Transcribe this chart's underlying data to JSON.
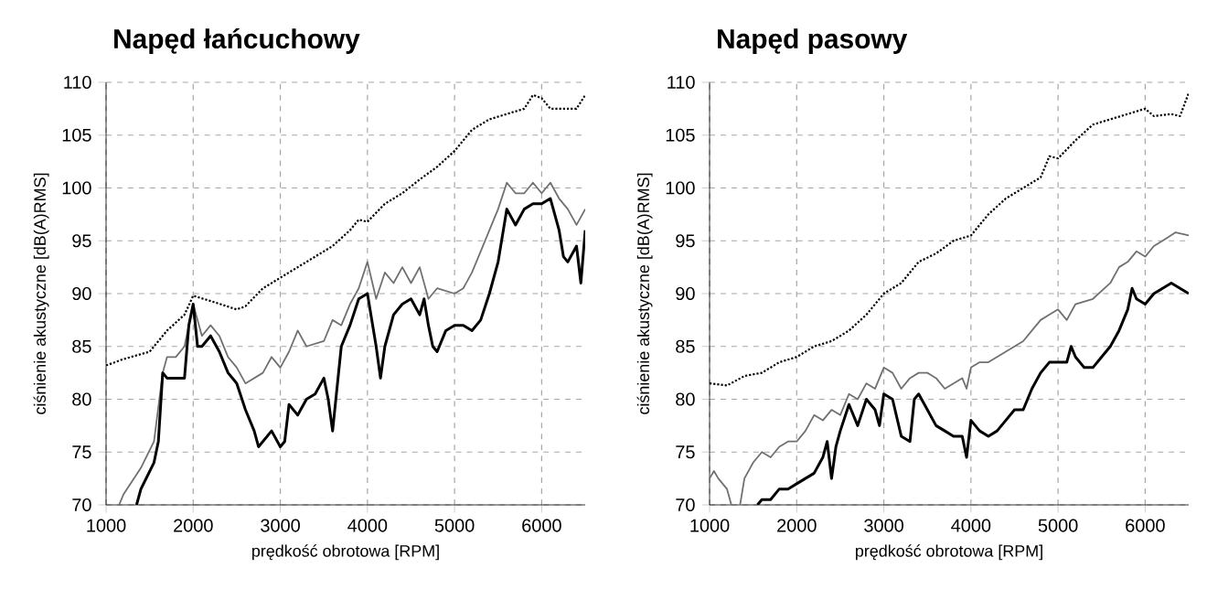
{
  "chart_data": [
    {
      "type": "line",
      "title": "Napęd łańcuchowy",
      "xlabel": "prędkość obrotowa [RPM]",
      "ylabel": "ciśnienie akustyczne [dB(A)RMS]",
      "xlim": [
        1000,
        6500
      ],
      "ylim": [
        70,
        110
      ],
      "xticks": [
        1000,
        2000,
        3000,
        4000,
        5000,
        6000
      ],
      "yticks": [
        70,
        75,
        80,
        85,
        90,
        95,
        100,
        105,
        110
      ],
      "grid": true,
      "series": [
        {
          "color": "#000000",
          "line_style": "dotted",
          "x": [
            1000,
            1200,
            1500,
            1700,
            1900,
            2000,
            2200,
            2500,
            2600,
            2800,
            3000,
            3200,
            3400,
            3600,
            3800,
            3900,
            4000,
            4200,
            4400,
            4600,
            4800,
            5000,
            5200,
            5400,
            5600,
            5800,
            5900,
            6000,
            6100,
            6300,
            6400,
            6500
          ],
          "values": [
            83.2,
            83.8,
            84.5,
            86.5,
            88,
            89.8,
            89.3,
            88.5,
            88.8,
            90.5,
            91.5,
            92.5,
            93.5,
            94.5,
            96,
            97,
            96.8,
            98.5,
            99.5,
            100.8,
            102,
            103.5,
            105.5,
            106.5,
            107,
            107.5,
            108.8,
            108.5,
            107.5,
            107.5,
            107.5,
            108.8
          ]
        },
        {
          "color": "#707070",
          "line_style": "solid",
          "x": [
            1150,
            1200,
            1400,
            1550,
            1650,
            1700,
            1800,
            1900,
            2000,
            2100,
            2200,
            2300,
            2400,
            2500,
            2600,
            2800,
            2900,
            3000,
            3100,
            3200,
            3300,
            3500,
            3600,
            3700,
            3800,
            3900,
            4000,
            4100,
            4200,
            4300,
            4400,
            4500,
            4600,
            4700,
            4800,
            5000,
            5100,
            5200,
            5300,
            5400,
            5500,
            5600,
            5700,
            5800,
            5900,
            6000,
            6100,
            6200,
            6300,
            6400,
            6500
          ],
          "values": [
            70,
            71,
            73.5,
            76,
            82.5,
            84,
            84,
            85,
            89,
            86,
            87,
            86,
            84,
            83,
            81.5,
            82.5,
            84,
            83,
            84.5,
            86.5,
            85,
            85.5,
            87.5,
            87,
            89,
            90.5,
            93,
            89.5,
            92,
            91,
            92.5,
            91,
            92.5,
            89.5,
            90.5,
            90,
            90.5,
            92,
            94,
            96,
            98,
            100.5,
            99.5,
            99.5,
            100.5,
            99.5,
            100.5,
            99,
            98,
            96.5,
            98
          ]
        },
        {
          "color": "#000000",
          "line_style": "solid",
          "x": [
            1350,
            1400,
            1550,
            1600,
            1650,
            1700,
            1900,
            1950,
            2000,
            2050,
            2100,
            2200,
            2300,
            2400,
            2500,
            2600,
            2700,
            2750,
            2900,
            3000,
            3050,
            3100,
            3200,
            3300,
            3400,
            3500,
            3550,
            3600,
            3700,
            3800,
            3900,
            4000,
            4100,
            4150,
            4200,
            4300,
            4400,
            4500,
            4600,
            4650,
            4700,
            4750,
            4800,
            4900,
            5000,
            5100,
            5200,
            5300,
            5400,
            5500,
            5600,
            5700,
            5800,
            5900,
            6000,
            6100,
            6200,
            6250,
            6300,
            6400,
            6450,
            6500
          ],
          "values": [
            70,
            71.5,
            74,
            76,
            82.5,
            82,
            82,
            87,
            89,
            85,
            85,
            86,
            84.5,
            82.5,
            81.5,
            79,
            77,
            75.5,
            77,
            75.5,
            76,
            79.5,
            78.5,
            80,
            80.5,
            82,
            80,
            77,
            85,
            87,
            89.5,
            90,
            85,
            82,
            85,
            88,
            89,
            89.5,
            88,
            89.5,
            87,
            85,
            84.5,
            86.5,
            87,
            87,
            86.5,
            87.5,
            90,
            93,
            98,
            96.5,
            98,
            98.5,
            98.5,
            99,
            96,
            93.5,
            93,
            94.5,
            91,
            96
          ]
        }
      ]
    },
    {
      "type": "line",
      "title": "Napęd pasowy",
      "xlabel": "prędkość obrotowa [RPM]",
      "ylabel": "ciśnienie akustyczne [dB(A)RMS]",
      "xlim": [
        1000,
        6500
      ],
      "ylim": [
        70,
        110
      ],
      "xticks": [
        1000,
        2000,
        3000,
        4000,
        5000,
        6000
      ],
      "yticks": [
        70,
        75,
        80,
        85,
        90,
        95,
        100,
        105,
        110
      ],
      "grid": true,
      "series": [
        {
          "color": "#000000",
          "line_style": "dotted",
          "x": [
            1000,
            1200,
            1400,
            1600,
            1800,
            2000,
            2200,
            2400,
            2600,
            2800,
            3000,
            3200,
            3400,
            3600,
            3800,
            4000,
            4200,
            4400,
            4600,
            4800,
            4900,
            5000,
            5200,
            5400,
            5600,
            5800,
            6000,
            6100,
            6300,
            6400,
            6500
          ],
          "values": [
            81.5,
            81.3,
            82.2,
            82.5,
            83.5,
            84,
            85,
            85.5,
            86.5,
            88,
            90,
            91,
            93,
            93.8,
            95,
            95.5,
            97.5,
            99,
            100,
            101,
            103,
            102.8,
            104.5,
            106,
            106.5,
            107,
            107.5,
            106.8,
            107,
            106.8,
            109
          ]
        },
        {
          "color": "#707070",
          "line_style": "solid",
          "x": [
            1000,
            1050,
            1100,
            1200,
            1250,
            1300,
            1350,
            1400,
            1500,
            1600,
            1700,
            1800,
            1900,
            2000,
            2100,
            2200,
            2300,
            2400,
            2500,
            2600,
            2700,
            2800,
            2900,
            3000,
            3100,
            3200,
            3300,
            3400,
            3500,
            3600,
            3700,
            3800,
            3900,
            3950,
            4000,
            4100,
            4200,
            4300,
            4400,
            4500,
            4600,
            4700,
            4800,
            4900,
            5000,
            5100,
            5200,
            5400,
            5600,
            5700,
            5800,
            5900,
            6000,
            6100,
            6200,
            6350,
            6500
          ],
          "values": [
            72.5,
            73.2,
            72.5,
            71.5,
            70,
            null,
            70,
            72.5,
            74,
            75,
            74.5,
            75.5,
            76,
            76,
            77,
            78.5,
            78,
            79,
            78.5,
            80.5,
            80,
            81.5,
            81,
            83,
            82.5,
            81,
            82,
            82.5,
            82.5,
            82,
            81,
            81.5,
            82,
            81,
            83,
            83.5,
            83.5,
            84,
            84.5,
            85,
            85.5,
            86.5,
            87.5,
            88,
            88.5,
            87.5,
            89,
            89.5,
            91,
            92.5,
            93,
            94,
            93.5,
            94.5,
            95,
            95.8,
            95.5
          ]
        },
        {
          "color": "#000000",
          "line_style": "solid",
          "x": [
            1550,
            1600,
            1700,
            1800,
            1900,
            2000,
            2100,
            2200,
            2300,
            2350,
            2400,
            2450,
            2500,
            2600,
            2700,
            2800,
            2900,
            2950,
            3000,
            3100,
            3200,
            3300,
            3350,
            3400,
            3500,
            3600,
            3700,
            3800,
            3900,
            3950,
            4000,
            4100,
            4200,
            4300,
            4400,
            4500,
            4600,
            4700,
            4800,
            4900,
            5000,
            5100,
            5150,
            5200,
            5300,
            5400,
            5500,
            5600,
            5700,
            5800,
            5850,
            5900,
            6000,
            6100,
            6200,
            6300,
            6400,
            6500
          ],
          "values": [
            70,
            70.5,
            70.5,
            71.5,
            71.5,
            72,
            72.5,
            73,
            74.5,
            76,
            72.5,
            75.5,
            77,
            79.5,
            77.5,
            80,
            79,
            77.5,
            80.5,
            80,
            76.5,
            76,
            80,
            80.5,
            79,
            77.5,
            77,
            76.5,
            76.5,
            74.5,
            78,
            77,
            76.5,
            77,
            78,
            79,
            79,
            81,
            82.5,
            83.5,
            83.5,
            83.5,
            85,
            84,
            83,
            83,
            84,
            85,
            86.5,
            88.5,
            90.5,
            89.5,
            89,
            90,
            90.5,
            91,
            90.5,
            90
          ]
        }
      ]
    }
  ]
}
